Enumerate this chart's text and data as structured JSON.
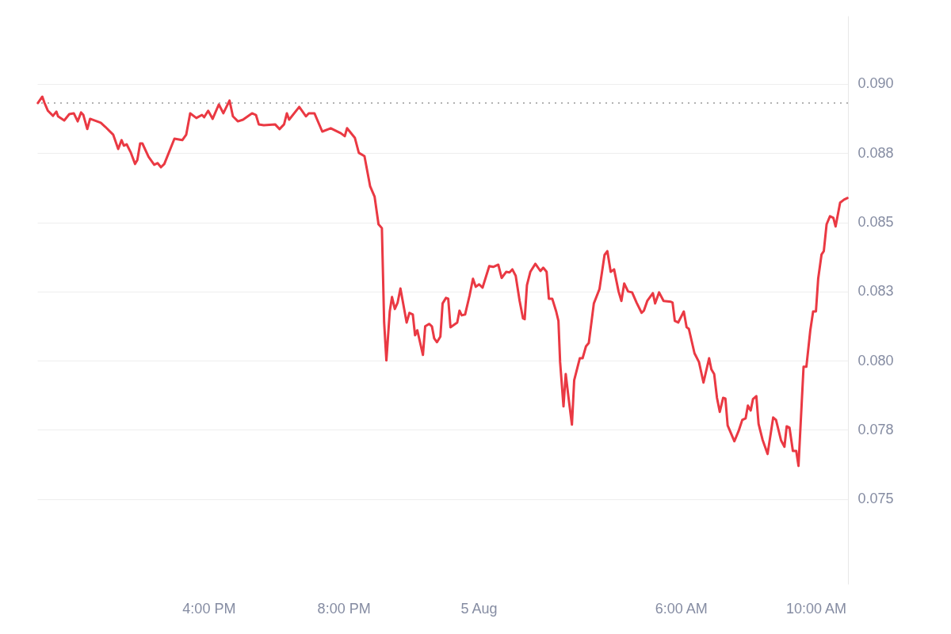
{
  "chart_data": {
    "type": "line",
    "xlim": [
      "--08-04T10:55",
      "--08-05T10:57"
    ],
    "xticks": [
      {
        "value": "--08-04T16:00",
        "label": "4:00 PM"
      },
      {
        "value": "--08-04T20:00",
        "label": "8:00 PM"
      },
      {
        "value": "--08-05T00:00",
        "label": "5 Aug"
      },
      {
        "value": "--08-05T06:00",
        "label": "6:00 AM"
      },
      {
        "value": "--08-05T10:00",
        "label": "10:00 AM"
      }
    ],
    "ylim": [
      0.07193,
      0.09246
    ],
    "yticks": [
      {
        "value": 0.075,
        "label": "0.075"
      },
      {
        "value": 0.0775,
        "label": "0.078"
      },
      {
        "value": 0.08,
        "label": "0.080"
      },
      {
        "value": 0.0825,
        "label": "0.083"
      },
      {
        "value": 0.085,
        "label": "0.085"
      },
      {
        "value": 0.0875,
        "label": "0.088"
      },
      {
        "value": 0.09,
        "label": "0.090"
      }
    ],
    "grid": "y",
    "ref_lines": [
      {
        "axis": "y",
        "value": 0.08931,
        "color": "#999999",
        "line_style": "dotted"
      }
    ],
    "series": [
      {
        "color": "#ea3943",
        "x": [
          "--08-04T10:56",
          "--08-04T11:04",
          "--08-04T11:08",
          "--08-04T11:14",
          "--08-04T11:23",
          "--08-04T11:29",
          "--08-04T11:32",
          "--08-04T11:43",
          "--08-04T11:52",
          "--08-04T12:00",
          "--08-04T12:07",
          "--08-04T12:13",
          "--08-04T12:17",
          "--08-04T12:24",
          "--08-04T12:29",
          "--08-04T12:48",
          "--08-04T12:56",
          "--08-04T13:10",
          "--08-04T13:19",
          "--08-04T13:25",
          "--08-04T13:29",
          "--08-04T13:34",
          "--08-04T13:41",
          "--08-04T13:49",
          "--08-04T13:53",
          "--08-04T13:58",
          "--08-04T14:02",
          "--08-04T14:13",
          "--08-04T14:23",
          "--08-04T14:29",
          "--08-04T14:35",
          "--08-04T14:41",
          "--08-04T14:59",
          "--08-04T15:13",
          "--08-04T15:20",
          "--08-04T15:27",
          "--08-04T15:38",
          "--08-04T15:48",
          "--08-04T15:52",
          "--08-04T15:59",
          "--08-04T16:07",
          "--08-04T16:18",
          "--08-04T16:26",
          "--08-04T16:37",
          "--08-04T16:43",
          "--08-04T16:52",
          "--08-04T17:01",
          "--08-04T17:17",
          "--08-04T17:24",
          "--08-04T17:29",
          "--08-04T17:38",
          "--08-04T17:58",
          "--08-04T18:06",
          "--08-04T18:14",
          "--08-04T18:19",
          "--08-04T18:23",
          "--08-04T18:41",
          "--08-04T18:53",
          "--08-04T18:58",
          "--08-04T19:08",
          "--08-04T19:22",
          "--08-04T19:37",
          "--08-04T19:55",
          "--08-04T20:02",
          "--08-04T20:06",
          "--08-04T20:20",
          "--08-04T20:27",
          "--08-04T20:37",
          "--08-04T20:47",
          "--08-04T20:55",
          "--08-04T21:02",
          "--08-04T21:08",
          "--08-04T21:12",
          "--08-04T21:16",
          "--08-04T21:22",
          "--08-04T21:26",
          "--08-04T21:31",
          "--08-04T21:36",
          "--08-04T21:41",
          "--08-04T21:52",
          "--08-04T21:57",
          "--08-04T22:03",
          "--08-04T22:07",
          "--08-04T22:11",
          "--08-04T22:21",
          "--08-04T22:25",
          "--08-04T22:32",
          "--08-04T22:37",
          "--08-04T22:41",
          "--08-04T22:46",
          "--08-04T22:52",
          "--08-04T22:56",
          "--08-04T23:02",
          "--08-04T23:06",
          "--08-04T23:10",
          "--08-04T23:22",
          "--08-04T23:26",
          "--08-04T23:30",
          "--08-04T23:36",
          "--08-04T23:44",
          "--08-04T23:50",
          "--08-04T23:55",
          "--08-05T00:01",
          "--08-05T00:07",
          "--08-05T00:19",
          "--08-05T00:26",
          "--08-05T00:35",
          "--08-05T00:41",
          "--08-05T00:49",
          "--08-05T00:55",
          "--08-05T01:00",
          "--08-05T01:06",
          "--08-05T01:13",
          "--08-05T01:19",
          "--08-05T01:22",
          "--08-05T01:26",
          "--08-05T01:32",
          "--08-05T01:41",
          "--08-05T01:50",
          "--08-05T01:55",
          "--08-05T02:01",
          "--08-05T02:05",
          "--08-05T02:11",
          "--08-05T02:18",
          "--08-05T02:22",
          "--08-05T02:25",
          "--08-05T02:31",
          "--08-05T02:35",
          "--08-05T02:40",
          "--08-05T02:46",
          "--08-05T02:50",
          "--08-05T03:00",
          "--08-05T03:05",
          "--08-05T03:11",
          "--08-05T03:16",
          "--08-05T03:25",
          "--08-05T03:35",
          "--08-05T03:44",
          "--08-05T03:49",
          "--08-05T03:55",
          "--08-05T04:01",
          "--08-05T04:09",
          "--08-05T04:14",
          "--08-05T04:19",
          "--08-05T04:26",
          "--08-05T04:33",
          "--08-05T04:41",
          "--08-05T04:50",
          "--08-05T04:54",
          "--08-05T05:00",
          "--08-05T05:10",
          "--08-05T05:14",
          "--08-05T05:21",
          "--08-05T05:29",
          "--08-05T05:42",
          "--08-05T05:45",
          "--08-05T05:49",
          "--08-05T05:55",
          "--08-05T06:05",
          "--08-05T06:10",
          "--08-05T06:14",
          "--08-05T06:24",
          "--08-05T06:32",
          "--08-05T06:40",
          "--08-05T06:50",
          "--08-05T06:54",
          "--08-05T06:59",
          "--08-05T07:04",
          "--08-05T07:09",
          "--08-05T07:15",
          "--08-05T07:19",
          "--08-05T07:23",
          "--08-05T07:35",
          "--08-05T07:43",
          "--08-05T07:49",
          "--08-05T07:55",
          "--08-05T07:59",
          "--08-05T08:04",
          "--08-05T08:08",
          "--08-05T08:14",
          "--08-05T08:18",
          "--08-05T08:25",
          "--08-05T08:34",
          "--08-05T08:44",
          "--08-05T08:49",
          "--08-05T08:58",
          "--08-05T09:04",
          "--08-05T09:08",
          "--08-05T09:13",
          "--08-05T09:19",
          "--08-05T09:25",
          "--08-05T09:29",
          "--08-05T09:38",
          "--08-05T09:43",
          "--08-05T09:50",
          "--08-05T09:55",
          "--08-05T10:00",
          "--08-05T10:04",
          "--08-05T10:10",
          "--08-05T10:14",
          "--08-05T10:19",
          "--08-05T10:25",
          "--08-05T10:31",
          "--08-05T10:35",
          "--08-05T10:43",
          "--08-05T10:50",
          "--08-05T10:56"
        ],
        "values": [
          0.08931,
          0.08954,
          0.08931,
          0.08903,
          0.08885,
          0.089,
          0.08883,
          0.08868,
          0.08891,
          0.08894,
          0.08865,
          0.08897,
          0.08888,
          0.08837,
          0.08874,
          0.0886,
          0.08845,
          0.08817,
          0.08765,
          0.08797,
          0.08777,
          0.08782,
          0.08754,
          0.08711,
          0.08725,
          0.08785,
          0.08785,
          0.08737,
          0.08708,
          0.08714,
          0.08699,
          0.08711,
          0.08802,
          0.08797,
          0.08817,
          0.08894,
          0.08877,
          0.08888,
          0.0888,
          0.08903,
          0.08874,
          0.08926,
          0.08894,
          0.0894,
          0.08883,
          0.08865,
          0.08871,
          0.08894,
          0.08888,
          0.08854,
          0.08851,
          0.08854,
          0.08837,
          0.08854,
          0.08894,
          0.08871,
          0.08917,
          0.08883,
          0.08894,
          0.08894,
          0.08828,
          0.0884,
          0.08822,
          0.08811,
          0.0884,
          0.08805,
          0.08751,
          0.08739,
          0.08631,
          0.08593,
          0.08493,
          0.08479,
          0.08138,
          0.08001,
          0.08178,
          0.0823,
          0.08187,
          0.0821,
          0.08261,
          0.08138,
          0.08173,
          0.08167,
          0.08092,
          0.0811,
          0.08021,
          0.08124,
          0.08133,
          0.08124,
          0.08081,
          0.08067,
          0.08087,
          0.08207,
          0.08227,
          0.08224,
          0.08121,
          0.08138,
          0.08181,
          0.08164,
          0.08167,
          0.08236,
          0.08296,
          0.08267,
          0.08276,
          0.08264,
          0.08342,
          0.08339,
          0.08347,
          0.08299,
          0.08321,
          0.08319,
          0.0833,
          0.08307,
          0.08216,
          0.08153,
          0.0815,
          0.08273,
          0.08321,
          0.0835,
          0.08324,
          0.08336,
          0.08321,
          0.08224,
          0.08224,
          0.08178,
          0.08144,
          0.07995,
          0.07835,
          0.07952,
          0.07866,
          0.07769,
          0.07929,
          0.08009,
          0.08009,
          0.08052,
          0.08064,
          0.08207,
          0.08259,
          0.08382,
          0.08396,
          0.08321,
          0.0833,
          0.0825,
          0.08216,
          0.08279,
          0.0825,
          0.08247,
          0.0821,
          0.08173,
          0.08181,
          0.08216,
          0.08244,
          0.08207,
          0.08247,
          0.08216,
          0.08213,
          0.0821,
          0.08144,
          0.08138,
          0.08178,
          0.08121,
          0.08115,
          0.08027,
          0.07995,
          0.07921,
          0.08009,
          0.07969,
          0.07952,
          0.07866,
          0.07815,
          0.07866,
          0.07863,
          0.07766,
          0.07709,
          0.07749,
          0.07786,
          0.07792,
          0.07838,
          0.0782,
          0.07861,
          0.07872,
          0.07772,
          0.07715,
          0.07663,
          0.07795,
          0.07786,
          0.07712,
          0.07689,
          0.07763,
          0.07758,
          0.07674,
          0.07674,
          0.0762,
          0.07978,
          0.07978,
          0.0811,
          0.08178,
          0.08178,
          0.08296,
          0.08384,
          0.08396,
          0.08493,
          0.08522,
          0.08516,
          0.08485,
          0.08571,
          0.08582,
          0.08588
        ]
      }
    ]
  }
}
